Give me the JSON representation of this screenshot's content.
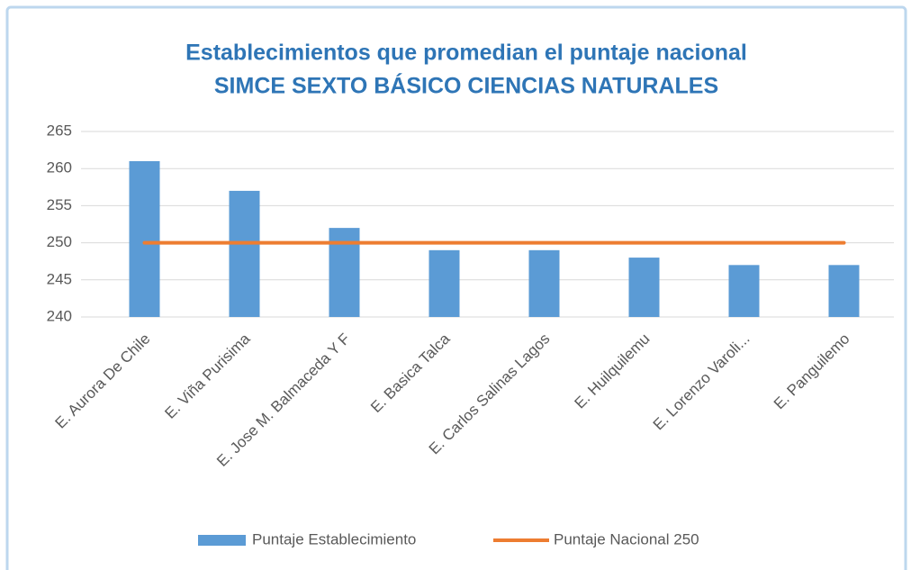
{
  "chart_data": {
    "type": "bar",
    "title": "Establecimientos que promedian el puntaje nacional",
    "subtitle": "SIMCE SEXTO BÁSICO CIENCIAS NATURALES",
    "categories": [
      "E. Aurora De Chile",
      "E. Viña Purisima",
      "E. Jose M. Balmaceda Y F",
      "E. Basica Talca",
      "E. Carlos Salinas Lagos",
      "E. Huilquilemu",
      "E. Lorenzo Varoli...",
      "E. Panguilemo"
    ],
    "series": [
      {
        "name": "Puntaje Establecimiento",
        "type": "bar",
        "color": "#5b9bd5",
        "values": [
          261,
          257,
          252,
          249,
          249,
          248,
          247,
          247
        ]
      },
      {
        "name": "Puntaje Nacional 250",
        "type": "line",
        "color": "#ed7d31",
        "values": [
          250,
          250,
          250,
          250,
          250,
          250,
          250,
          250
        ]
      }
    ],
    "ylim": [
      240,
      265
    ],
    "yticks": [
      240,
      245,
      250,
      255,
      260,
      265
    ],
    "grid": true,
    "legend": "bottom"
  }
}
